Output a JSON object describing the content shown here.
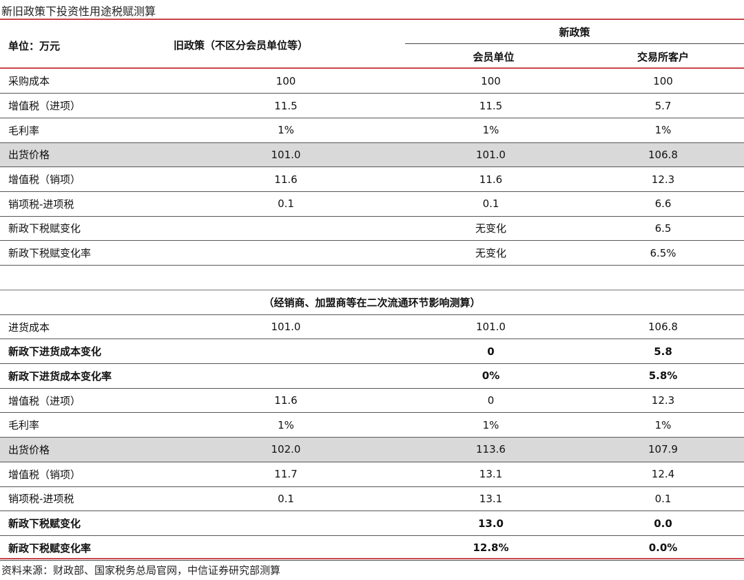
{
  "title": "新旧政策下投资性用途税赋测算",
  "header": {
    "unit": "单位：万元",
    "old_policy": "旧政策（不区分会员单位等）",
    "new_policy": "新政策",
    "member": "会员单位",
    "exchange_client": "交易所客户"
  },
  "section1": [
    {
      "label": "采购成本",
      "old": "100",
      "member": "100",
      "client": "100"
    },
    {
      "label": "增值税（进项）",
      "old": "11.5",
      "member": "11.5",
      "client": "5.7"
    },
    {
      "label": "毛利率",
      "old": "1%",
      "member": "1%",
      "client": "1%"
    },
    {
      "label": "出货价格",
      "old": "101.0",
      "member": "101.0",
      "client": "106.8",
      "highlight": true
    },
    {
      "label": "增值税（销项）",
      "old": "11.6",
      "member": "11.6",
      "client": "12.3"
    },
    {
      "label": "销项税-进项税",
      "old": "0.1",
      "member": "0.1",
      "client": "6.6"
    },
    {
      "label": "新政下税赋变化",
      "old": "",
      "member": "无变化",
      "client": "6.5"
    },
    {
      "label": "新政下税赋变化率",
      "old": "",
      "member": "无变化",
      "client": "6.5%"
    }
  ],
  "section2_title": "（经销商、加盟商等在二次流通环节影响测算）",
  "section2": [
    {
      "label": "进货成本",
      "old": "101.0",
      "member": "101.0",
      "client": "106.8"
    },
    {
      "label": "新政下进货成本变化",
      "old": "",
      "member": "0",
      "client": "5.8",
      "bold": true
    },
    {
      "label": "新政下进货成本变化率",
      "old": "",
      "member": "0%",
      "client": "5.8%",
      "bold": true
    },
    {
      "label": "增值税（进项）",
      "old": "11.6",
      "member": "0",
      "client": "12.3"
    },
    {
      "label": "毛利率",
      "old": "1%",
      "member": "1%",
      "client": "1%"
    },
    {
      "label": "出货价格",
      "old": "102.0",
      "member": "113.6",
      "client": "107.9",
      "highlight": true
    },
    {
      "label": "增值税（销项）",
      "old": "11.7",
      "member": "13.1",
      "client": "12.4"
    },
    {
      "label": "销项税-进项税",
      "old": "0.1",
      "member": "13.1",
      "client": "0.1"
    },
    {
      "label": "新政下税赋变化",
      "old": "",
      "member": "13.0",
      "client": "0.0",
      "bold": true
    },
    {
      "label": "新政下税赋变化率",
      "old": "",
      "member": "12.8%",
      "client": "0.0%",
      "bold": true
    }
  ],
  "source": "资料来源：财政部、国家税务总局官网，中信证券研究部测算",
  "colors": {
    "accent_line": "#c8444a",
    "highlight_row": "#d9d9d9"
  }
}
